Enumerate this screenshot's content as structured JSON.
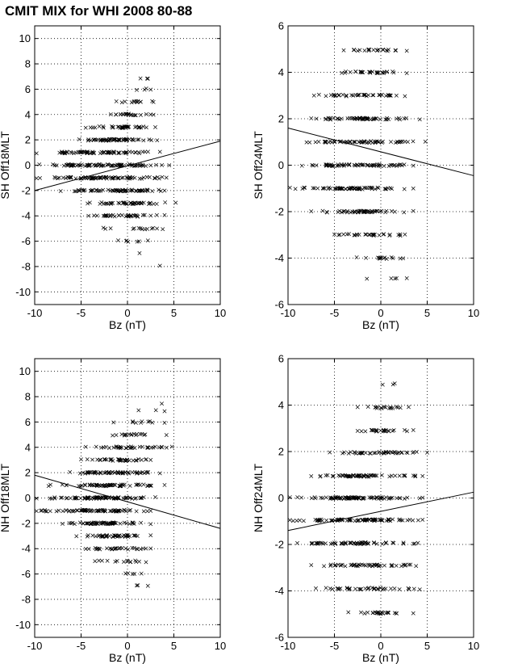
{
  "figure_title": "CMIT MIX for WHI 2008 80-88",
  "colors": {
    "axes": "#000000",
    "grid": "#000000",
    "marker": "#000000",
    "fit": "#000000",
    "background": "#ffffff"
  },
  "chart_data": [
    {
      "type": "scatter",
      "id": "sh-off18mlt",
      "xlabel": "Bz (nT)",
      "ylabel": "SH Off18MLT",
      "xlim": [
        -10,
        10
      ],
      "ylim": [
        -11,
        11
      ],
      "xticks": [
        -10,
        -5,
        0,
        5,
        10
      ],
      "yticks": [
        -10,
        -8,
        -6,
        -4,
        -2,
        0,
        2,
        4,
        6,
        8,
        10
      ],
      "grid": true,
      "marker": "x",
      "fit_line": {
        "x": [
          -10,
          10
        ],
        "y": [
          -2.0,
          1.9
        ]
      },
      "bands": [
        {
          "y": 6.9,
          "x": [
            1.4,
            2.2
          ],
          "count": 3
        },
        {
          "y": 6.0,
          "x": [
            1.0,
            2.5
          ],
          "count": 4
        },
        {
          "y": 5.0,
          "x": [
            -1.2,
            2.8
          ],
          "count": 14
        },
        {
          "y": 4.0,
          "x": [
            -1.8,
            2.8
          ],
          "count": 22
        },
        {
          "y": 3.0,
          "x": [
            -4.5,
            3.0
          ],
          "count": 40
        },
        {
          "y": 2.0,
          "x": [
            -5.2,
            3.2
          ],
          "count": 55
        },
        {
          "y": 1.0,
          "x": [
            -9.8,
            3.5
          ],
          "count": 70
        },
        {
          "y": 0.0,
          "x": [
            -9.5,
            4.5
          ],
          "count": 85
        },
        {
          "y": -1.0,
          "x": [
            -9.8,
            4.2
          ],
          "count": 80
        },
        {
          "y": -2.0,
          "x": [
            -7.2,
            4.0
          ],
          "count": 65
        },
        {
          "y": -3.0,
          "x": [
            -4.3,
            5.2
          ],
          "count": 45
        },
        {
          "y": -4.0,
          "x": [
            -4.2,
            4.0
          ],
          "count": 35
        },
        {
          "y": -5.0,
          "x": [
            -2.6,
            3.8
          ],
          "count": 14
        },
        {
          "y": -6.0,
          "x": [
            -1.0,
            2.2
          ],
          "count": 7
        },
        {
          "y": -7.0,
          "x": [
            1.3,
            1.4
          ],
          "count": 1
        },
        {
          "y": -7.9,
          "x": [
            3.5,
            3.6
          ],
          "count": 1
        }
      ]
    },
    {
      "type": "scatter",
      "id": "sh-off24mlt",
      "xlabel": "Bz (nT)",
      "ylabel": "SH Off24MLT",
      "xlim": [
        -10,
        10
      ],
      "ylim": [
        -6,
        6
      ],
      "xticks": [
        -10,
        -5,
        0,
        5,
        10
      ],
      "yticks": [
        -6,
        -4,
        -2,
        0,
        2,
        4,
        6
      ],
      "grid": true,
      "marker": "x",
      "fit_line": {
        "x": [
          -10,
          10
        ],
        "y": [
          1.6,
          -0.45
        ]
      },
      "bands": [
        {
          "y": 4.95,
          "x": [
            -4.0,
            2.8
          ],
          "count": 22
        },
        {
          "y": 4.0,
          "x": [
            -4.2,
            2.8
          ],
          "count": 30
        },
        {
          "y": 3.0,
          "x": [
            -7.2,
            2.6
          ],
          "count": 40
        },
        {
          "y": 2.0,
          "x": [
            -7.5,
            4.2
          ],
          "count": 55
        },
        {
          "y": 1.0,
          "x": [
            -8.0,
            4.8
          ],
          "count": 60
        },
        {
          "y": 0.0,
          "x": [
            -8.5,
            3.5
          ],
          "count": 65
        },
        {
          "y": -1.0,
          "x": [
            -9.8,
            3.5
          ],
          "count": 70
        },
        {
          "y": -2.0,
          "x": [
            -7.5,
            3.5
          ],
          "count": 50
        },
        {
          "y": -3.0,
          "x": [
            -5.0,
            2.6
          ],
          "count": 30
        },
        {
          "y": -4.0,
          "x": [
            -2.6,
            2.4
          ],
          "count": 15
        },
        {
          "y": -4.9,
          "x": [
            -1.5,
            2.8
          ],
          "count": 5
        }
      ]
    },
    {
      "type": "scatter",
      "id": "nh-off18mlt",
      "xlabel": "Bz (nT)",
      "ylabel": "NH Off18MLT",
      "xlim": [
        -10,
        10
      ],
      "ylim": [
        -11,
        11
      ],
      "xticks": [
        -10,
        -5,
        0,
        5,
        10
      ],
      "yticks": [
        -10,
        -8,
        -6,
        -4,
        -2,
        0,
        2,
        4,
        6,
        8,
        10
      ],
      "grid": true,
      "marker": "x",
      "fit_line": {
        "x": [
          -10,
          10
        ],
        "y": [
          1.8,
          -2.4
        ]
      },
      "bands": [
        {
          "y": 7.4,
          "x": [
            3.7,
            4.0
          ],
          "count": 1
        },
        {
          "y": 6.9,
          "x": [
            1.2,
            4.0
          ],
          "count": 3
        },
        {
          "y": 6.0,
          "x": [
            -1.5,
            4.0
          ],
          "count": 10
        },
        {
          "y": 5.0,
          "x": [
            -1.6,
            4.2
          ],
          "count": 18
        },
        {
          "y": 4.0,
          "x": [
            -4.5,
            4.8
          ],
          "count": 35
        },
        {
          "y": 3.0,
          "x": [
            -5.0,
            2.5
          ],
          "count": 40
        },
        {
          "y": 2.0,
          "x": [
            -6.2,
            3.5
          ],
          "count": 55
        },
        {
          "y": 1.0,
          "x": [
            -8.5,
            4.0
          ],
          "count": 65
        },
        {
          "y": 0.0,
          "x": [
            -9.8,
            3.0
          ],
          "count": 80
        },
        {
          "y": -1.0,
          "x": [
            -9.8,
            2.5
          ],
          "count": 75
        },
        {
          "y": -2.0,
          "x": [
            -7.0,
            2.5
          ],
          "count": 60
        },
        {
          "y": -3.0,
          "x": [
            -5.5,
            2.5
          ],
          "count": 45
        },
        {
          "y": -4.0,
          "x": [
            -4.5,
            2.5
          ],
          "count": 30
        },
        {
          "y": -5.0,
          "x": [
            -3.5,
            2.0
          ],
          "count": 15
        },
        {
          "y": -6.0,
          "x": [
            -0.2,
            1.5
          ],
          "count": 5
        },
        {
          "y": -6.9,
          "x": [
            1.0,
            2.2
          ],
          "count": 3
        }
      ]
    },
    {
      "type": "scatter",
      "id": "nh-off24mlt",
      "xlabel": "Bz (nT)",
      "ylabel": "NH Off24MLT",
      "xlim": [
        -10,
        10
      ],
      "ylim": [
        -6,
        6
      ],
      "xticks": [
        -10,
        -5,
        0,
        5,
        10
      ],
      "yticks": [
        -6,
        -4,
        -2,
        0,
        2,
        4,
        6
      ],
      "grid": true,
      "marker": "x",
      "fit_line": {
        "x": [
          -10,
          10
        ],
        "y": [
          -1.4,
          0.25
        ]
      },
      "bands": [
        {
          "y": 4.9,
          "x": [
            0.2,
            1.5
          ],
          "count": 3
        },
        {
          "y": 3.9,
          "x": [
            -2.5,
            3.0
          ],
          "count": 18
        },
        {
          "y": 2.9,
          "x": [
            -2.5,
            3.5
          ],
          "count": 25
        },
        {
          "y": 1.95,
          "x": [
            -5.5,
            5.0
          ],
          "count": 45
        },
        {
          "y": 0.95,
          "x": [
            -7.5,
            4.5
          ],
          "count": 60
        },
        {
          "y": 0.0,
          "x": [
            -9.8,
            4.5
          ],
          "count": 85
        },
        {
          "y": -0.95,
          "x": [
            -9.8,
            4.5
          ],
          "count": 85
        },
        {
          "y": -1.95,
          "x": [
            -9.0,
            4.0
          ],
          "count": 65
        },
        {
          "y": -2.9,
          "x": [
            -7.5,
            3.8
          ],
          "count": 50
        },
        {
          "y": -3.9,
          "x": [
            -7.0,
            4.2
          ],
          "count": 40
        },
        {
          "y": -4.95,
          "x": [
            -3.5,
            3.5
          ],
          "count": 25
        }
      ]
    }
  ]
}
